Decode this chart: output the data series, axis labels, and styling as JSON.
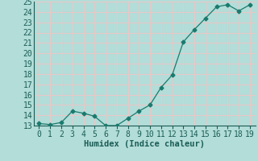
{
  "x": [
    0,
    1,
    2,
    3,
    4,
    5,
    6,
    7,
    8,
    9,
    10,
    11,
    12,
    13,
    14,
    15,
    16,
    17,
    18,
    19
  ],
  "y": [
    13.2,
    13.1,
    13.3,
    14.4,
    14.2,
    13.9,
    13.0,
    13.0,
    13.7,
    14.4,
    15.0,
    16.7,
    17.9,
    21.1,
    22.3,
    23.4,
    24.5,
    24.7,
    24.1,
    24.7
  ],
  "line_color": "#1a7a6e",
  "marker": "D",
  "marker_size": 2.5,
  "bg_color": "#b3ddd8",
  "grid_color": "#e8c8c8",
  "xlabel": "Humidex (Indice chaleur)",
  "xlabel_fontsize": 7.5,
  "tick_fontsize": 7,
  "ylim": [
    13,
    25
  ],
  "xlim": [
    -0.5,
    19.5
  ],
  "yticks": [
    13,
    14,
    15,
    16,
    17,
    18,
    19,
    20,
    21,
    22,
    23,
    24,
    25
  ],
  "xticks": [
    0,
    1,
    2,
    3,
    4,
    5,
    6,
    7,
    8,
    9,
    10,
    11,
    12,
    13,
    14,
    15,
    16,
    17,
    18,
    19
  ]
}
